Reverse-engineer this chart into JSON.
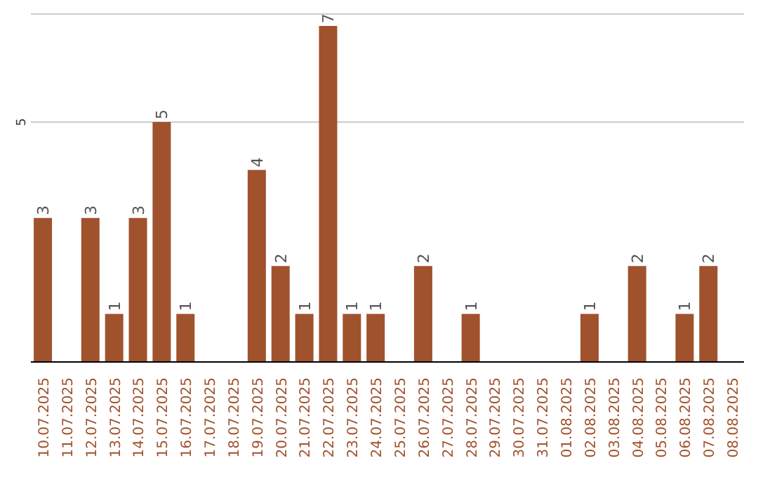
{
  "chart_data": {
    "type": "bar",
    "categories": [
      "10.07.2025",
      "11.07.2025",
      "12.07.2025",
      "13.07.2025",
      "14.07.2025",
      "15.07.2025",
      "16.07.2025",
      "17.07.2025",
      "18.07.2025",
      "19.07.2025",
      "20.07.2025",
      "21.07.2025",
      "22.07.2025",
      "23.07.2025",
      "24.07.2025",
      "25.07.2025",
      "26.07.2025",
      "27.07.2025",
      "28.07.2025",
      "29.07.2025",
      "30.07.2025",
      "31.07.2025",
      "01.08.2025",
      "02.08.2025",
      "03.08.2025",
      "04.08.2025",
      "05.08.2025",
      "06.08.2025",
      "07.08.2025",
      "08.08.2025"
    ],
    "values": [
      3,
      0,
      3,
      1,
      3,
      5,
      1,
      0,
      0,
      4,
      2,
      1,
      7,
      1,
      1,
      0,
      2,
      0,
      1,
      0,
      0,
      0,
      0,
      1,
      0,
      2,
      0,
      1,
      2,
      0
    ],
    "value_labels": [
      "3",
      null,
      "3",
      "1",
      "3",
      "5",
      "1",
      null,
      null,
      "4",
      "2",
      "1",
      "7",
      "1",
      "1",
      null,
      "2",
      null,
      "1",
      null,
      null,
      null,
      null,
      "1",
      null,
      "2",
      null,
      "1",
      "2",
      null
    ],
    "color": "#a0522d",
    "ylim": [
      0,
      7.25
    ],
    "yticks": [
      5
    ],
    "grid": "y"
  }
}
